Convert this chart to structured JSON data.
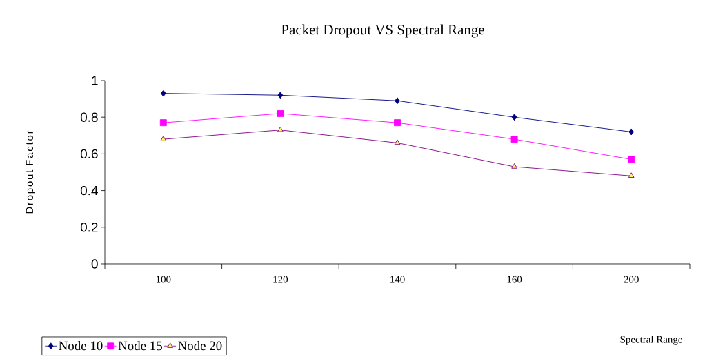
{
  "chart_data": {
    "type": "line",
    "title": "Packet Dropout VS Spectral Range",
    "annotations": [
      "Spectral Range"
    ],
    "ylabel": "Dropout Factor",
    "categories": [
      "100",
      "120",
      "140",
      "160",
      "200"
    ],
    "series": [
      {
        "name": "Node 10",
        "color": "#000080",
        "marker": "diamond",
        "values": [
          0.93,
          0.92,
          0.89,
          0.8,
          0.72
        ]
      },
      {
        "name": "Node 15",
        "color": "#ff00ff",
        "marker": "square",
        "values": [
          0.77,
          0.82,
          0.77,
          0.68,
          0.57
        ]
      },
      {
        "name": "Node 20",
        "color": "#800080",
        "marker": "triangle",
        "values": [
          0.68,
          0.73,
          0.66,
          0.53,
          0.48
        ]
      }
    ],
    "ylim": [
      0,
      1
    ],
    "yticks": [
      0,
      0.2,
      0.4,
      0.6,
      0.8,
      1
    ],
    "legend": "bottom left",
    "line_style": "solid"
  }
}
